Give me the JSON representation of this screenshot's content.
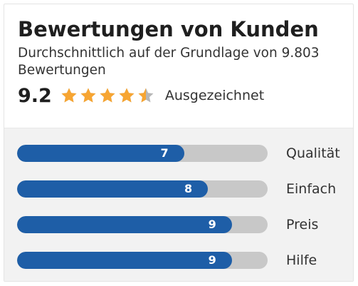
{
  "title": "Bewertungen von Kunden",
  "subtitle": "Durchschnittlich auf der Grundlage von 9.803 Bewertungen",
  "score": "9.2",
  "stars": {
    "count": 5,
    "filled": 4.5,
    "color_filled": "#f7a532",
    "color_empty": "#b7b7b7"
  },
  "rating_label": "Ausgezeichnet",
  "bar_color": "#1e5ea7",
  "track_color": "#c8c8c8",
  "scale_max": 10.5,
  "categories": [
    {
      "label": "Qualität",
      "value": "7"
    },
    {
      "label": "Einfach",
      "value": "8"
    },
    {
      "label": "Preis",
      "value": "9"
    },
    {
      "label": "Hilfe",
      "value": "9"
    }
  ]
}
